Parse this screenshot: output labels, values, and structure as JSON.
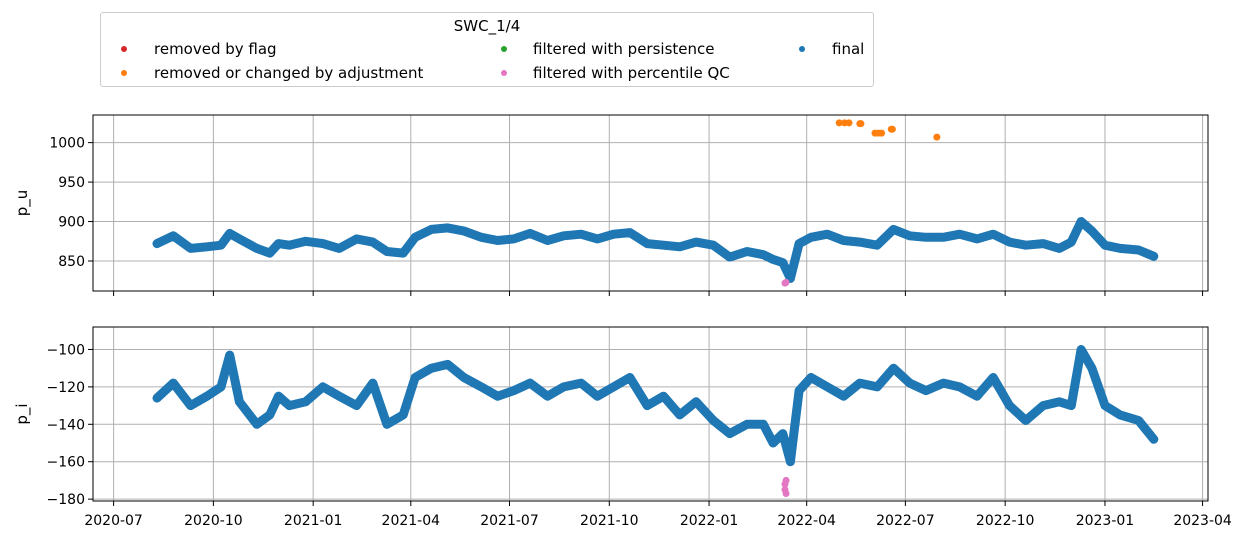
{
  "legend": {
    "title": "SWC_1/4",
    "entries": [
      {
        "label": "removed by flag",
        "color": "#d62728"
      },
      {
        "label": "removed or changed by adjustment",
        "color": "#ff7f0e"
      },
      {
        "label": "filtered with persistence",
        "color": "#2ca02c"
      },
      {
        "label": "filtered with percentile QC",
        "color": "#e377c2"
      },
      {
        "label": "final",
        "color": "#1f77b4"
      }
    ]
  },
  "chart_data": [
    {
      "type": "scatter",
      "ylabel": "p_u",
      "ylim": [
        812,
        1035
      ],
      "yticks": [
        850,
        900,
        950,
        1000
      ],
      "xlim": [
        "2020-06-12",
        "2023-04-06"
      ],
      "grid": true,
      "series": [
        {
          "name": "final",
          "color": "#1f77b4",
          "x": [
            "2020-08-10",
            "2020-08-25",
            "2020-09-10",
            "2020-09-25",
            "2020-10-08",
            "2020-10-16",
            "2020-10-25",
            "2020-11-10",
            "2020-11-22",
            "2020-11-30",
            "2020-12-10",
            "2020-12-25",
            "2021-01-10",
            "2021-01-25",
            "2021-02-10",
            "2021-02-25",
            "2021-03-10",
            "2021-03-25",
            "2021-04-05",
            "2021-04-20",
            "2021-05-05",
            "2021-05-20",
            "2021-06-05",
            "2021-06-20",
            "2021-07-05",
            "2021-07-20",
            "2021-08-05",
            "2021-08-20",
            "2021-09-05",
            "2021-09-20",
            "2021-10-05",
            "2021-10-20",
            "2021-11-05",
            "2021-11-20",
            "2021-12-05",
            "2021-12-20",
            "2022-01-05",
            "2022-01-20",
            "2022-02-05",
            "2022-02-20",
            "2022-03-01",
            "2022-03-10",
            "2022-03-17",
            "2022-03-25",
            "2022-04-05",
            "2022-04-20",
            "2022-05-05",
            "2022-05-20",
            "2022-06-05",
            "2022-06-20",
            "2022-07-05",
            "2022-07-20",
            "2022-08-05",
            "2022-08-20",
            "2022-09-05",
            "2022-09-20",
            "2022-10-05",
            "2022-10-20",
            "2022-11-05",
            "2022-11-20",
            "2022-12-01",
            "2022-12-10",
            "2022-12-20",
            "2023-01-01",
            "2023-01-15",
            "2023-02-01",
            "2023-02-15"
          ],
          "y": [
            872,
            882,
            866,
            868,
            870,
            885,
            878,
            866,
            860,
            872,
            870,
            875,
            872,
            866,
            878,
            874,
            862,
            860,
            880,
            890,
            892,
            888,
            880,
            876,
            878,
            885,
            876,
            882,
            884,
            878,
            884,
            886,
            872,
            870,
            868,
            874,
            870,
            855,
            862,
            858,
            852,
            848,
            828,
            872,
            880,
            884,
            876,
            874,
            870,
            890,
            882,
            880,
            880,
            884,
            878,
            884,
            874,
            870,
            872,
            866,
            874,
            900,
            888,
            870,
            866,
            864,
            856
          ]
        },
        {
          "name": "removed or changed by adjustment",
          "color": "#ff7f0e",
          "x": [
            "2022-05-01",
            "2022-05-06",
            "2022-05-10",
            "2022-05-20",
            "2022-05-21",
            "2022-06-03",
            "2022-06-06",
            "2022-06-09",
            "2022-06-18",
            "2022-06-19",
            "2022-07-30"
          ],
          "y": [
            1025,
            1025,
            1025,
            1024,
            1024,
            1012,
            1012,
            1012,
            1017,
            1017,
            1007
          ]
        },
        {
          "name": "filtered with percentile QC",
          "color": "#e377c2",
          "x": [
            "2022-03-12",
            "2022-03-13"
          ],
          "y": [
            822,
            823
          ]
        }
      ]
    },
    {
      "type": "scatter",
      "ylabel": "p_i",
      "ylim": [
        -181,
        -88
      ],
      "yticks": [
        -180,
        -160,
        -140,
        -120,
        -100
      ],
      "xlim": [
        "2020-06-12",
        "2023-04-06"
      ],
      "xticks": [
        "2020-07",
        "2020-10",
        "2021-01",
        "2021-04",
        "2021-07",
        "2021-10",
        "2022-01",
        "2022-04",
        "2022-07",
        "2022-10",
        "2023-01",
        "2023-04"
      ],
      "grid": true,
      "series": [
        {
          "name": "final",
          "color": "#1f77b4",
          "x": [
            "2020-08-10",
            "2020-08-25",
            "2020-09-10",
            "2020-09-25",
            "2020-10-08",
            "2020-10-16",
            "2020-10-25",
            "2020-11-10",
            "2020-11-22",
            "2020-11-30",
            "2020-12-10",
            "2020-12-25",
            "2021-01-10",
            "2021-01-25",
            "2021-02-10",
            "2021-02-25",
            "2021-03-10",
            "2021-03-25",
            "2021-04-05",
            "2021-04-20",
            "2021-05-05",
            "2021-05-20",
            "2021-06-05",
            "2021-06-20",
            "2021-07-05",
            "2021-07-20",
            "2021-08-05",
            "2021-08-20",
            "2021-09-05",
            "2021-09-20",
            "2021-10-05",
            "2021-10-20",
            "2021-11-05",
            "2021-11-20",
            "2021-12-05",
            "2021-12-20",
            "2022-01-05",
            "2022-01-20",
            "2022-02-05",
            "2022-02-20",
            "2022-03-01",
            "2022-03-10",
            "2022-03-17",
            "2022-03-25",
            "2022-04-05",
            "2022-04-20",
            "2022-05-05",
            "2022-05-20",
            "2022-06-05",
            "2022-06-20",
            "2022-07-05",
            "2022-07-20",
            "2022-08-05",
            "2022-08-20",
            "2022-09-05",
            "2022-09-20",
            "2022-10-05",
            "2022-10-20",
            "2022-11-05",
            "2022-11-20",
            "2022-12-01",
            "2022-12-10",
            "2022-12-20",
            "2023-01-01",
            "2023-01-15",
            "2023-02-01",
            "2023-02-15"
          ],
          "y": [
            -126,
            -118,
            -130,
            -125,
            -120,
            -103,
            -128,
            -140,
            -135,
            -125,
            -130,
            -128,
            -120,
            -125,
            -130,
            -118,
            -140,
            -135,
            -115,
            -110,
            -108,
            -115,
            -120,
            -125,
            -122,
            -118,
            -125,
            -120,
            -118,
            -125,
            -120,
            -115,
            -130,
            -125,
            -135,
            -128,
            -138,
            -145,
            -140,
            -140,
            -150,
            -145,
            -160,
            -122,
            -115,
            -120,
            -125,
            -118,
            -120,
            -110,
            -118,
            -122,
            -118,
            -120,
            -125,
            -115,
            -130,
            -138,
            -130,
            -128,
            -130,
            -100,
            -110,
            -130,
            -135,
            -138,
            -148
          ]
        },
        {
          "name": "filtered with percentile QC",
          "color": "#e377c2",
          "x": [
            "2022-03-12",
            "2022-03-12",
            "2022-03-13",
            "2022-03-13"
          ],
          "y": [
            -172,
            -175,
            -177,
            -170
          ]
        }
      ]
    }
  ]
}
